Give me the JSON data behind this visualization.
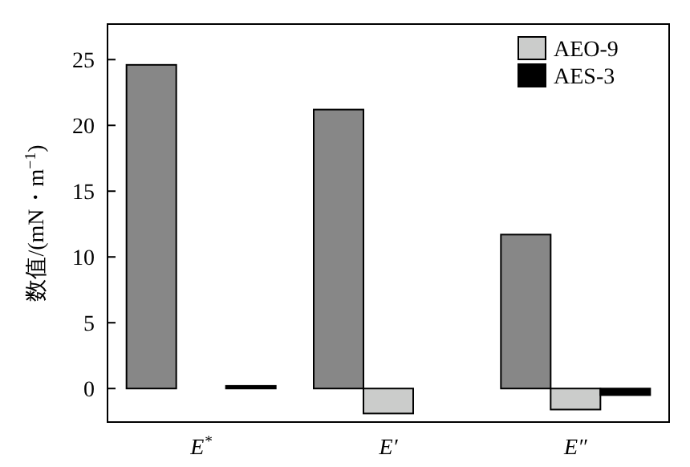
{
  "chart_data": {
    "type": "bar",
    "ylabel": "数值/(mN・m$^{−1}$)",
    "categories": [
      "E$^{*}$",
      "E′",
      "E″"
    ],
    "series": [
      {
        "color": "#878787",
        "values": [
          24.6,
          21.2,
          11.7
        ]
      },
      {
        "name": "AEO-9",
        "color": "#cbcccb",
        "values": [
          0.0,
          -1.9,
          -1.6
        ]
      },
      {
        "name": "AES-3",
        "color": "#000000",
        "values": [
          0.2,
          0.0,
          -0.5
        ]
      }
    ],
    "ylim": [
      -2.55,
      27.7
    ],
    "yticks": [
      0,
      5,
      10,
      15,
      20,
      25
    ],
    "grid": false,
    "legend": "top right"
  }
}
